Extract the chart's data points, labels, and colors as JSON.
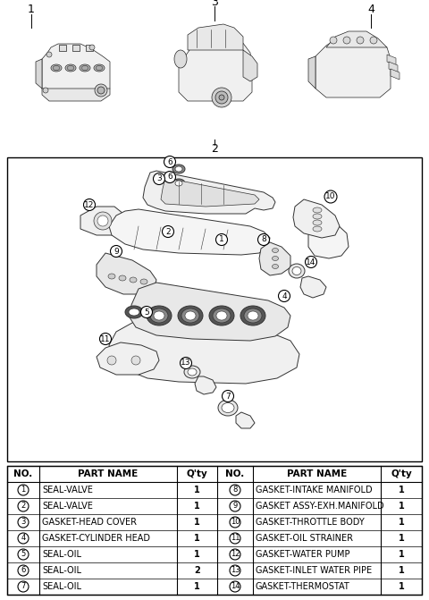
{
  "bg_color": "#ffffff",
  "border_color": "#000000",
  "table_rows_left": [
    [
      "1",
      "SEAL-VALVE",
      "1"
    ],
    [
      "2",
      "SEAL-VALVE",
      "1"
    ],
    [
      "3",
      "GASKET-HEAD COVER",
      "1"
    ],
    [
      "4",
      "GASKET-CYLINDER HEAD",
      "1"
    ],
    [
      "5",
      "SEAL-OIL",
      "1"
    ],
    [
      "6",
      "SEAL-OIL",
      "2"
    ],
    [
      "7",
      "SEAL-OIL",
      "1"
    ]
  ],
  "table_rows_right": [
    [
      "8",
      "GASKET-INTAKE MANIFOLD",
      "1"
    ],
    [
      "9",
      "GASKET ASSY-EXH.MANIFOLD",
      "1"
    ],
    [
      "10",
      "GASKET-THROTTLE BODY",
      "1"
    ],
    [
      "11",
      "GASKET-OIL STRAINER",
      "1"
    ],
    [
      "12",
      "GASKET-WATER PUMP",
      "1"
    ],
    [
      "13",
      "GASKET-INLET WATER PIPE",
      "1"
    ],
    [
      "14",
      "GASKET-THERMOSTAT",
      "1"
    ]
  ],
  "font_size_table": 7.0,
  "font_size_header": 7.5
}
